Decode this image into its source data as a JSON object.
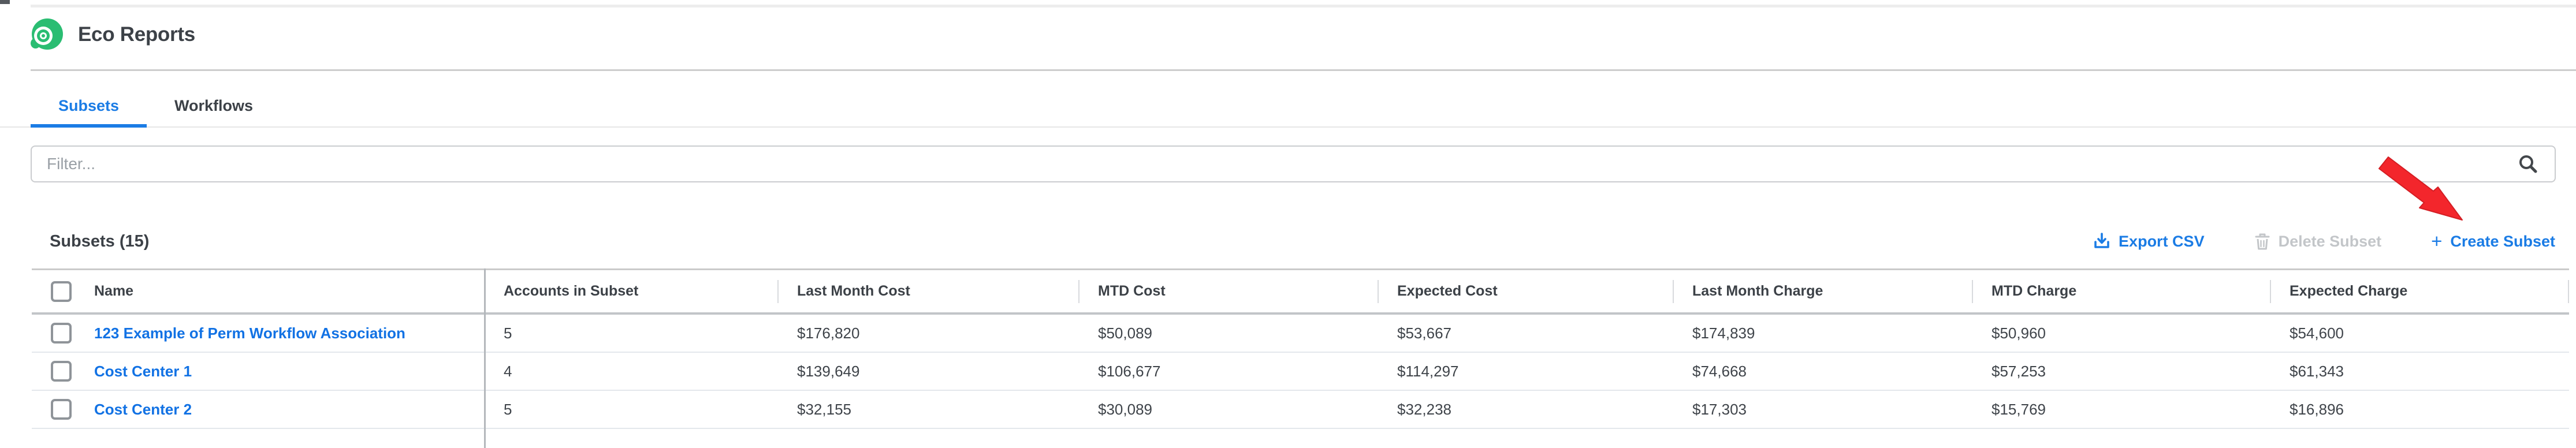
{
  "app": {
    "title": "Eco Reports"
  },
  "tabs": [
    {
      "label": "Subsets",
      "active": true
    },
    {
      "label": "Workflows",
      "active": false
    }
  ],
  "filter": {
    "placeholder": "Filter...",
    "value": ""
  },
  "section": {
    "title": "Subsets (15)"
  },
  "actions": {
    "export_csv": {
      "label": "Export CSV",
      "icon": "download-icon",
      "enabled": true
    },
    "delete_subset": {
      "label": "Delete Subset",
      "icon": "trash-icon",
      "enabled": false
    },
    "create_subset": {
      "label": "Create Subset",
      "icon": "plus-icon",
      "prefix": "+",
      "enabled": true
    }
  },
  "annotation": {
    "type": "red-arrow",
    "points_to": "Create Subset"
  },
  "table": {
    "select_all_checked": false,
    "columns": [
      "Name",
      "Accounts in Subset",
      "Last Month Cost",
      "MTD Cost",
      "Expected Cost",
      "Last Month Charge",
      "MTD Charge",
      "Expected Charge"
    ],
    "rows": [
      {
        "checked": false,
        "name": "123 Example of Perm Workflow Association",
        "accounts": "5",
        "last_month_cost": "$176,820",
        "mtd_cost": "$50,089",
        "expected_cost": "$53,667",
        "last_month_charge": "$174,839",
        "mtd_charge": "$50,960",
        "expected_charge": "$54,600"
      },
      {
        "checked": false,
        "name": "Cost Center 1",
        "accounts": "4",
        "last_month_cost": "$139,649",
        "mtd_cost": "$106,677",
        "expected_cost": "$114,297",
        "last_month_charge": "$74,668",
        "mtd_charge": "$57,253",
        "expected_charge": "$61,343"
      },
      {
        "checked": false,
        "name": "Cost Center 2",
        "accounts": "5",
        "last_month_cost": "$32,155",
        "mtd_cost": "$30,089",
        "expected_cost": "$32,238",
        "last_month_charge": "$17,303",
        "mtd_charge": "$15,769",
        "expected_charge": "$16,896"
      }
    ]
  },
  "icons": {
    "logo": "eco-spiral-green-circle",
    "search": "magnifying-glass",
    "export": "download-tray-arrow",
    "delete": "trash-can",
    "create": "plus-sign"
  },
  "colors": {
    "accent_blue": "#1B7CE5",
    "link_blue": "#1272E4",
    "logo_green": "#2ABD72",
    "arrow_red": "#F3262C",
    "disabled_gray": "#C3C6C9",
    "text_dark": "#3C4147"
  }
}
